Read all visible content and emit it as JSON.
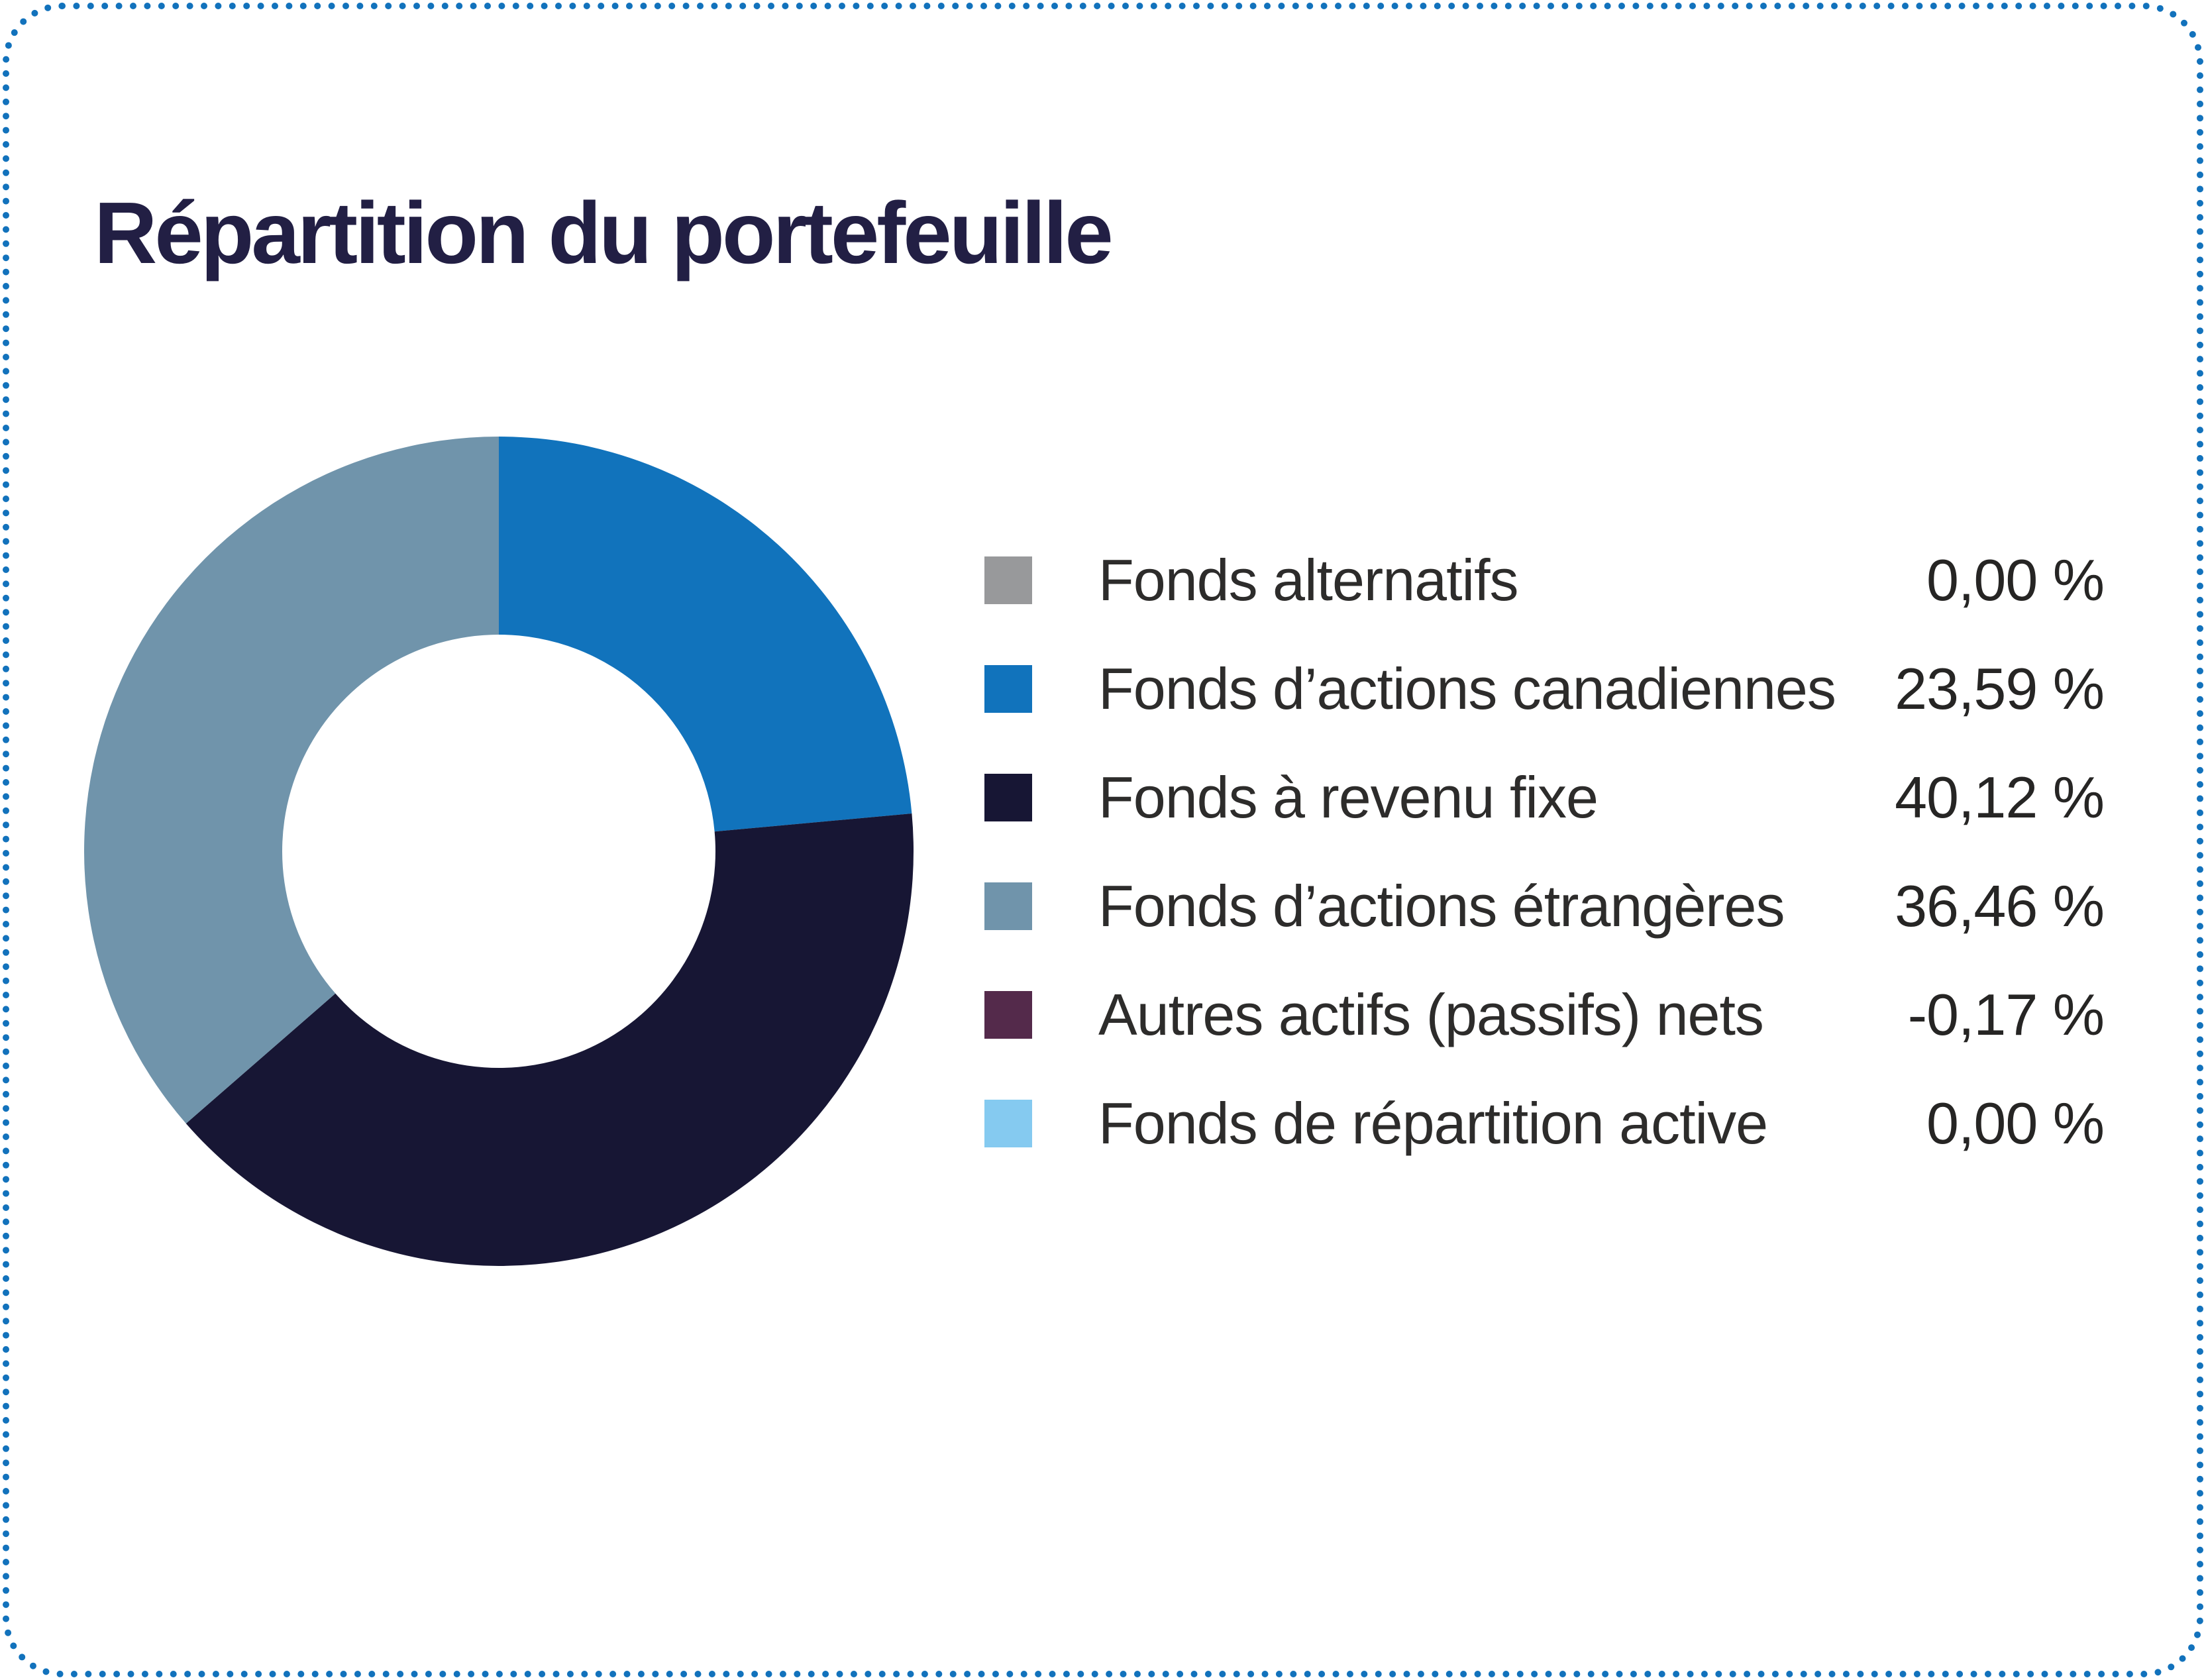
{
  "colors": {
    "border_dots": "#1272bc",
    "title": "#221f44",
    "text": "#2d2c2b",
    "background": "#ffffff"
  },
  "chart_data": {
    "type": "pie",
    "donut": true,
    "title": "Répartition du portefeuille",
    "legend_position": "right",
    "start_angle": "top",
    "direction": "clockwise",
    "inner_radius_ratio": 0.52,
    "series": [
      {
        "label": "Fonds alternatifs",
        "value": 0.0,
        "display": "0,00 %",
        "color": "#98999b"
      },
      {
        "label": "Fonds d’actions canadiennes",
        "value": 23.59,
        "display": "23,59 %",
        "color": "#1173bc"
      },
      {
        "label": "Fonds à revenu fixe",
        "value": 40.12,
        "display": "40,12 %",
        "color": "#171634"
      },
      {
        "label": "Fonds d’actions étrangères",
        "value": 36.46,
        "display": "36,46 %",
        "color": "#7094ab"
      },
      {
        "label": "Autres actifs (passifs) nets",
        "value": -0.17,
        "display": "-0,17 %",
        "color": "#542a4b"
      },
      {
        "label": "Fonds de répartition active",
        "value": 0.0,
        "display": "0,00 %",
        "color": "#85caf0"
      }
    ]
  }
}
